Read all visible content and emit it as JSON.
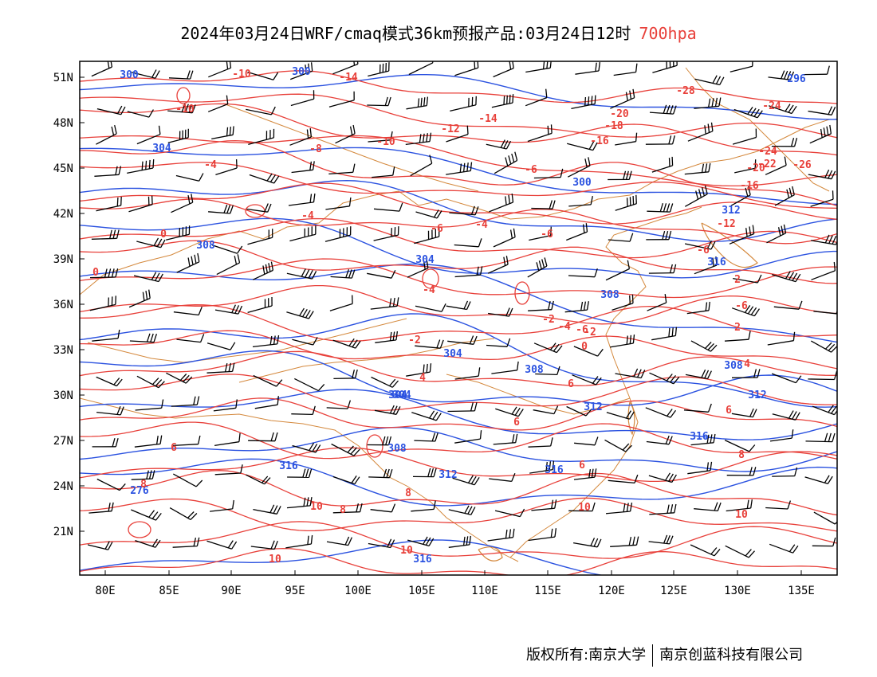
{
  "title": {
    "main": "2024年03月24日WRF/cmaq模式36km预报产品:03月24日12时",
    "level": "700hpa"
  },
  "footer": {
    "rights": "版权所有:南京大学",
    "company": "南京创蓝科技有限公司"
  },
  "colors": {
    "height_contour": "#2b52e0",
    "temp_contour": "#e8403a",
    "boundary": "#d4883c",
    "wind_barb": "#000000"
  },
  "axes": {
    "lon_ticks": [
      "80E",
      "85E",
      "90E",
      "95E",
      "100E",
      "105E",
      "110E",
      "115E",
      "120E",
      "125E",
      "130E",
      "135E"
    ],
    "lat_ticks": [
      "51N",
      "48N",
      "45N",
      "42N",
      "39N",
      "36N",
      "33N",
      "30N",
      "27N",
      "24N",
      "21N"
    ]
  },
  "map_data": {
    "lon_range": [
      78,
      138
    ],
    "lat_range": [
      18.2,
      52.2
    ],
    "height_labels": [
      "300",
      "300",
      "304",
      "308",
      "308",
      "300",
      "304",
      "304",
      "308",
      "304",
      "304",
      "312",
      "308",
      "308",
      "312",
      "312",
      "316",
      "316",
      "276",
      "296",
      "312",
      "316",
      "316",
      "316"
    ],
    "temp_labels": [
      "-10",
      "-10",
      "-14",
      "-12",
      "-20",
      "-18",
      "-16",
      "-28",
      "-24",
      "-24",
      "-26",
      "-10",
      "-14",
      "-16",
      "-20",
      "-22",
      "-8",
      "-6",
      "-4",
      "-4",
      "-4",
      "-6",
      "-6",
      "-6",
      "-12",
      "-4",
      "-2",
      "0",
      "-2",
      "-2",
      "-6",
      "-6",
      "-4",
      "0",
      "2",
      "0",
      "2",
      "4",
      "4",
      "6",
      "6",
      "6",
      "6",
      "8",
      "8",
      "8",
      "10",
      "10",
      "10",
      "10",
      "10",
      "8",
      "6"
    ]
  }
}
